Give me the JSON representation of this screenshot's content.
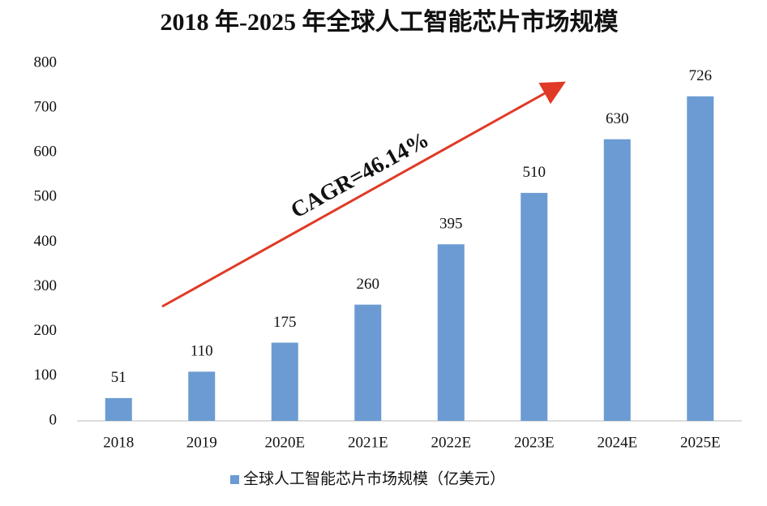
{
  "chart_data": {
    "type": "bar",
    "title": "2018 年-2025 年全球人工智能芯片市场规模",
    "annotation": "CAGR=46.14%",
    "categories": [
      "2018",
      "2019",
      "2020E",
      "2021E",
      "2022E",
      "2023E",
      "2024E",
      "2025E"
    ],
    "series": [
      {
        "name": "全球人工智能芯片市场规模（亿美元）",
        "color": "#6b9bd2",
        "values": [
          51,
          110,
          175,
          260,
          395,
          510,
          630,
          726
        ]
      }
    ],
    "ylim": [
      0,
      800
    ],
    "yticks": [
      0,
      100,
      200,
      300,
      400,
      500,
      600,
      700,
      800
    ],
    "grid": false,
    "legend": "bottom"
  }
}
